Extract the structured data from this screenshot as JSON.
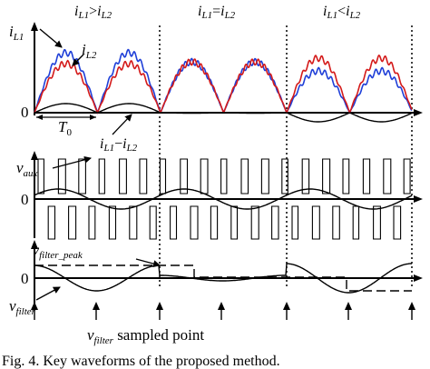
{
  "figure": {
    "caption": "Fig. 4.  Key waveforms of the proposed method.",
    "condition_labels": {
      "left": {
        "a": "i",
        "a_sub": "L1",
        "op": ">",
        "b": "i",
        "b_sub": "L2"
      },
      "middle": {
        "a": "i",
        "a_sub": "L1",
        "op": "=",
        "b": "i",
        "b_sub": "L2"
      },
      "right": {
        "a": "i",
        "a_sub": "L1",
        "op": "<",
        "b": "i",
        "b_sub": "L2"
      }
    },
    "signals": {
      "iL1": {
        "base": "i",
        "sub": "L1"
      },
      "iL2": {
        "base": "i",
        "sub": "L2"
      },
      "diff": {
        "a": "i",
        "a_sub": "L1",
        "op": "−",
        "b": "i",
        "b_sub": "L2"
      },
      "period": {
        "base": "T",
        "sub": "0"
      },
      "vaux": {
        "base": "v",
        "sub": "aux"
      },
      "vfilter_peak": {
        "base": "v",
        "sub": "filter_peak"
      },
      "vfilter": {
        "base": "v",
        "sub": "filter"
      },
      "sampled": {
        "base": "v",
        "sub": "filter",
        "rest": " sampled point"
      }
    },
    "zero_labels": [
      "0",
      "0",
      "0"
    ],
    "colors": {
      "iL1": "#1f3fd8",
      "iL2": "#d41a1a",
      "trace": "#000000"
    }
  }
}
